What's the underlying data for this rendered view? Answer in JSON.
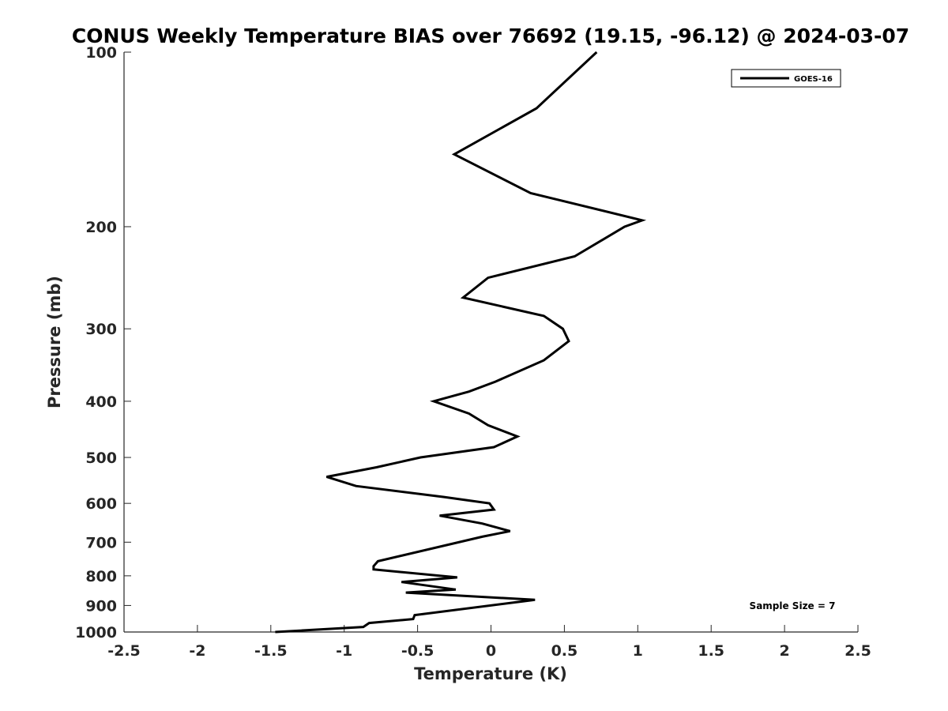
{
  "chart_data": {
    "type": "line",
    "title": "CONUS Weekly Temperature BIAS over 76692 (19.15, -96.12) @ 2024-03-07",
    "xlabel": "Temperature (K)",
    "ylabel": "Pressure (mb)",
    "xlim": [
      -2.5,
      2.5
    ],
    "ylim": [
      1000,
      100
    ],
    "y_scale": "log",
    "y_reversed": true,
    "grid": false,
    "x_ticks": [
      "-2.5",
      "-2",
      "-1.5",
      "-1",
      "-0.5",
      "0",
      "0.5",
      "1",
      "1.5",
      "2",
      "2.5"
    ],
    "y_ticks": [
      100,
      200,
      300,
      400,
      500,
      600,
      700,
      800,
      900,
      1000
    ],
    "y_tick_labels": [
      "100",
      "200",
      "300",
      "400",
      "500",
      "600",
      "700",
      "800",
      "900",
      "1000"
    ],
    "legend": {
      "position": "top-right",
      "entries": [
        "GOES-16"
      ]
    },
    "annotation": "Sample Size = 7",
    "series": [
      {
        "name": "GOES-16",
        "color": "#000000",
        "points": [
          [
            0.72,
            100
          ],
          [
            0.31,
            125
          ],
          [
            -0.25,
            150
          ],
          [
            0.27,
            175
          ],
          [
            1.03,
            195
          ],
          [
            0.91,
            200
          ],
          [
            0.57,
            225
          ],
          [
            -0.02,
            245
          ],
          [
            -0.19,
            265
          ],
          [
            0.36,
            285
          ],
          [
            0.49,
            300
          ],
          [
            0.53,
            315
          ],
          [
            0.36,
            340
          ],
          [
            0.03,
            370
          ],
          [
            -0.15,
            385
          ],
          [
            -0.39,
            400
          ],
          [
            -0.15,
            420
          ],
          [
            -0.02,
            440
          ],
          [
            0.18,
            460
          ],
          [
            0.02,
            480
          ],
          [
            -0.48,
            500
          ],
          [
            -0.78,
            520
          ],
          [
            -1.12,
            540
          ],
          [
            -0.92,
            560
          ],
          [
            -0.32,
            585
          ],
          [
            -0.01,
            600
          ],
          [
            0.02,
            615
          ],
          [
            -0.35,
            630
          ],
          [
            -0.06,
            650
          ],
          [
            0.13,
            670
          ],
          [
            -0.06,
            685
          ],
          [
            -0.77,
            755
          ],
          [
            -0.8,
            770
          ],
          [
            -0.8,
            780
          ],
          [
            -0.23,
            805
          ],
          [
            -0.61,
            820
          ],
          [
            -0.24,
            845
          ],
          [
            -0.58,
            855
          ],
          [
            0.3,
            880
          ],
          [
            -0.52,
            935
          ],
          [
            -0.53,
            950
          ],
          [
            -0.83,
            965
          ],
          [
            -0.87,
            980
          ],
          [
            -1.47,
            1000
          ]
        ]
      }
    ]
  }
}
